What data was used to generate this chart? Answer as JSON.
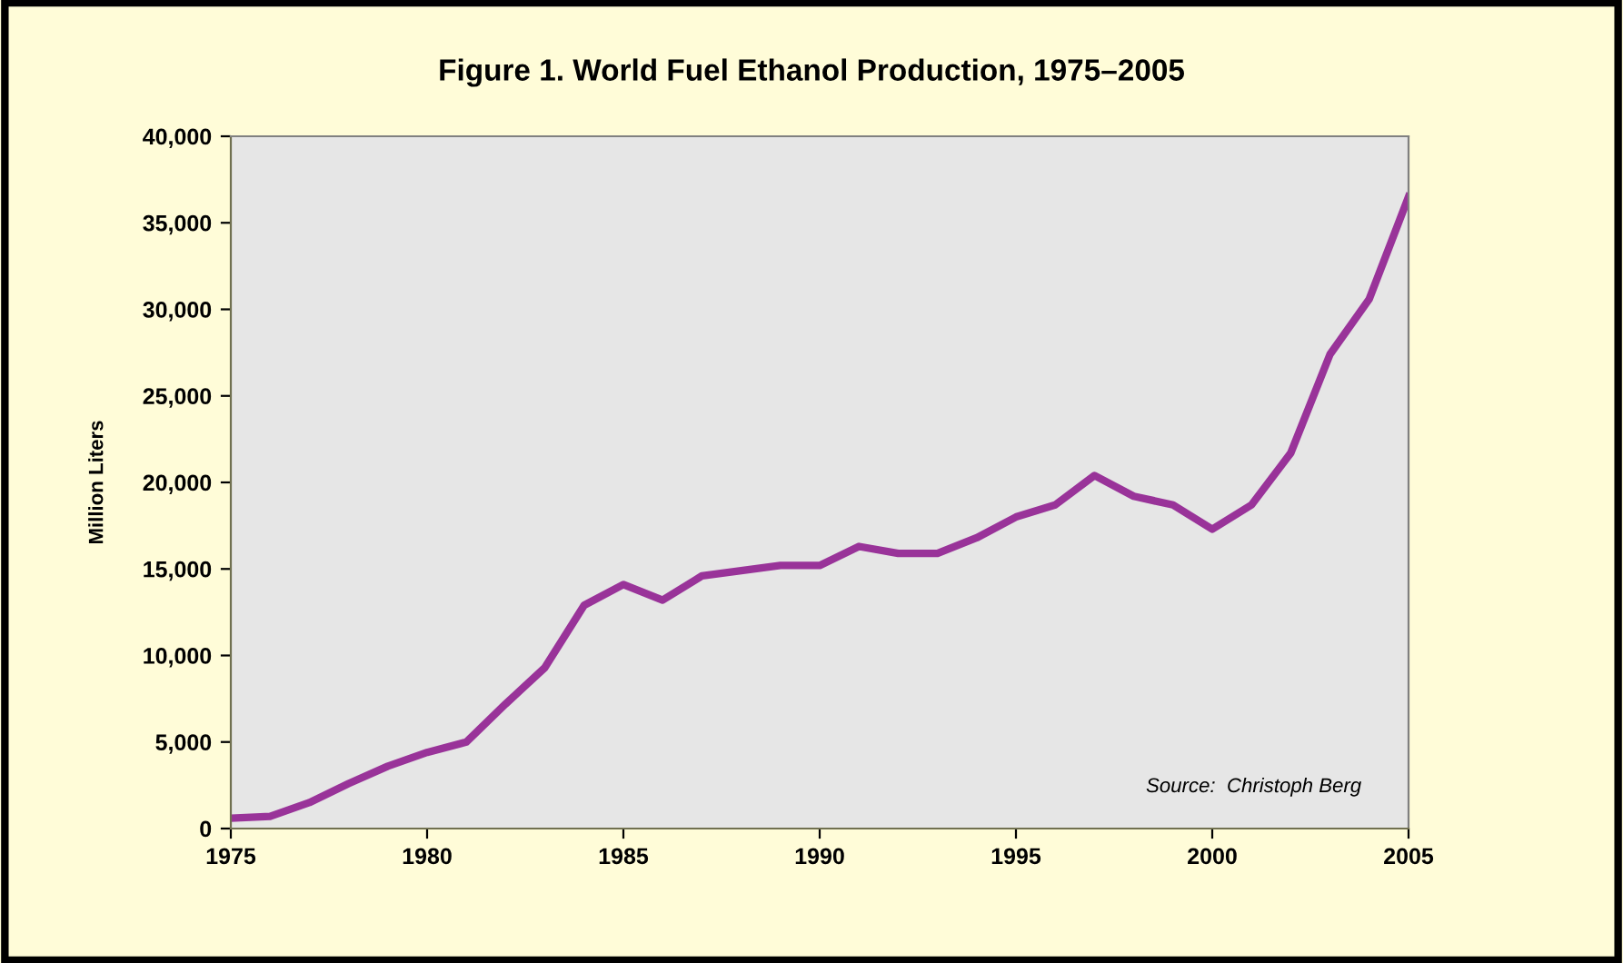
{
  "chart_data": {
    "type": "line",
    "title": "Figure 1. World Fuel Ethanol Production, 1975–2005",
    "ylabel": "Million Liters",
    "annotations": [
      "Source:  Christoph Berg"
    ],
    "x": [
      1975,
      1976,
      1977,
      1978,
      1979,
      1980,
      1981,
      1982,
      1983,
      1984,
      1985,
      1986,
      1987,
      1988,
      1989,
      1990,
      1991,
      1992,
      1993,
      1994,
      1995,
      1996,
      1997,
      1998,
      1999,
      2000,
      2001,
      2002,
      2003,
      2004,
      2005
    ],
    "series": [
      {
        "color": "#993399",
        "values": [
          600,
          700,
          1500,
          2600,
          3600,
          4400,
          5000,
          7200,
          9300,
          12900,
          14100,
          13200,
          14600,
          14900,
          15200,
          15200,
          16300,
          15900,
          15900,
          16800,
          18000,
          18700,
          20400,
          19200,
          18700,
          17300,
          18700,
          21700,
          27400,
          30600,
          36500
        ]
      }
    ],
    "xlim": [
      1975,
      2005
    ],
    "xticks": [
      1975,
      1980,
      1985,
      1990,
      1995,
      2000,
      2005
    ],
    "ylim": [
      0,
      40000
    ],
    "yticks": [
      {
        "value": 0,
        "label": "0"
      },
      {
        "value": 5000,
        "label": "5,000"
      },
      {
        "value": 10000,
        "label": "10,000"
      },
      {
        "value": 15000,
        "label": "15,000"
      },
      {
        "value": 20000,
        "label": "20,000"
      },
      {
        "value": 25000,
        "label": "25,000"
      },
      {
        "value": 30000,
        "label": "30,000"
      },
      {
        "value": 35000,
        "label": "35,000"
      },
      {
        "value": 40000,
        "label": "40,000"
      }
    ],
    "grid": false,
    "legend": false,
    "marker": "none",
    "line_style": "solid"
  }
}
